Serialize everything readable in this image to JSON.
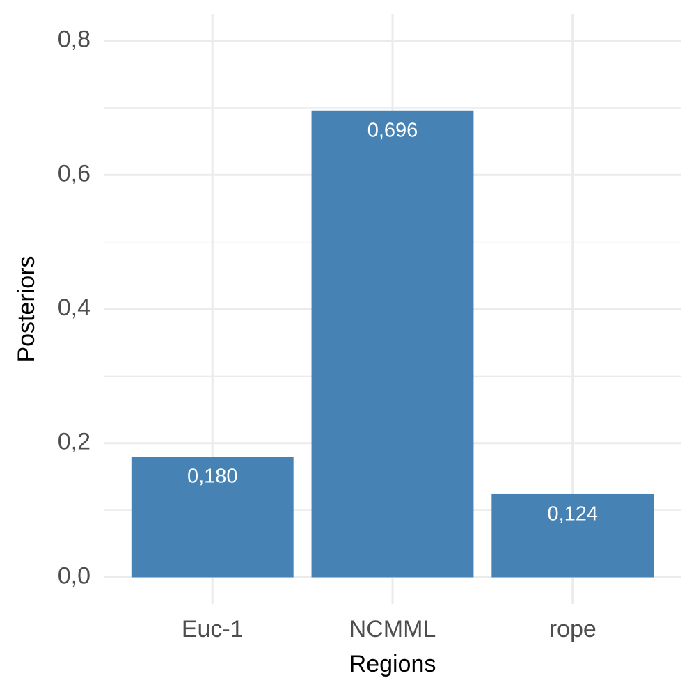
{
  "chart_data": {
    "type": "bar",
    "x_label": "Regions",
    "y_label": "Posteriors",
    "categories": [
      "Euc-1",
      "NCMML",
      "rope"
    ],
    "values": [
      0.18,
      0.696,
      0.124
    ],
    "value_labels": [
      "0,180",
      "0,696",
      "0,124"
    ],
    "color": "#4682b4",
    "ylim": [
      -0.04,
      0.84
    ],
    "yticks": [
      {
        "value": 0,
        "label": "0,0"
      },
      {
        "value": 0.2,
        "label": "0,2"
      },
      {
        "value": 0.4,
        "label": "0,4"
      },
      {
        "value": 0.6,
        "label": "0,6"
      },
      {
        "value": 0.8,
        "label": "0,8"
      }
    ],
    "minor_yticks": [
      0.1,
      0.3,
      0.5,
      0.7
    ],
    "grid": true
  }
}
